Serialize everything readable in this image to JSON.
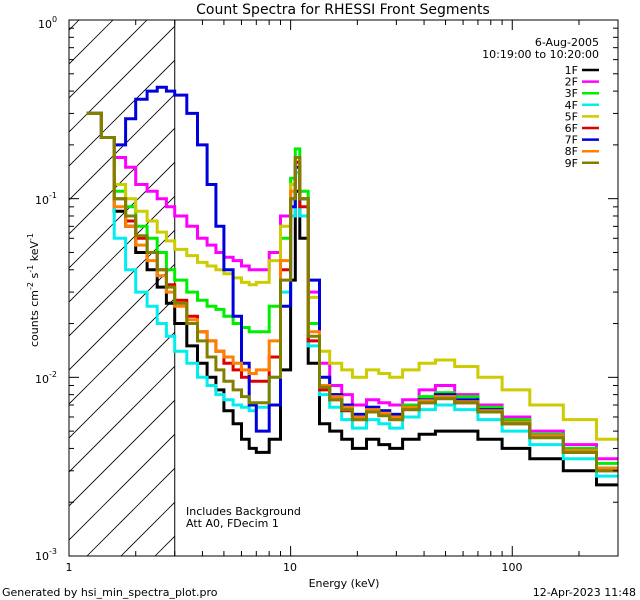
{
  "chart_data": {
    "type": "line",
    "title": "Count Spectra for RHESSI Front Segments",
    "xlabel": "Energy (keV)",
    "ylabel": "counts cm",
    "ylabel_sup1": "-2",
    "ylabel_mid": " s",
    "ylabel_sup2": "-1",
    "ylabel_end": " keV",
    "ylabel_sup3": "-1",
    "x_scale": "log",
    "y_scale": "log",
    "xlim": [
      1,
      300
    ],
    "ylim": [
      0.001,
      1
    ],
    "x_ticks": [
      {
        "value": 1,
        "label": "1"
      },
      {
        "value": 10,
        "label": "10"
      },
      {
        "value": 100,
        "label": "100"
      }
    ],
    "y_ticks": [
      {
        "value": 1,
        "base": "10",
        "exp": "0"
      },
      {
        "value": 0.1,
        "base": "10",
        "exp": "-1"
      },
      {
        "value": 0.01,
        "base": "10",
        "exp": "-2"
      },
      {
        "value": 0.001,
        "base": "10",
        "exp": "-3"
      }
    ],
    "date": "6-Aug-2005",
    "time_range": "10:19:00 to 10:20:00",
    "annotation_line1": "Includes Background",
    "annotation_line2": "Att A0, FDecim 1",
    "attenuated_region_max_kev": 3,
    "series": [
      {
        "name": "1F",
        "color": "#000000",
        "y": [
          0.3,
          0.22,
          0.085,
          0.07,
          0.05,
          0.04,
          0.032,
          0.026,
          0.02,
          0.015,
          0.012,
          0.01,
          0.0085,
          0.0065,
          0.0055,
          0.0045,
          0.004,
          0.0038,
          0.0045,
          0.011,
          0.035,
          0.11,
          0.06,
          0.012,
          0.0055,
          0.005,
          0.0045,
          0.004,
          0.0045,
          0.0042,
          0.004,
          0.0045,
          0.0048,
          0.005,
          0.005,
          0.0045,
          0.004,
          0.0035,
          0.003,
          0.0025
        ]
      },
      {
        "name": "2F",
        "color": "#ff00ff",
        "y": [
          0.3,
          0.22,
          0.17,
          0.15,
          0.12,
          0.11,
          0.1,
          0.09,
          0.08,
          0.07,
          0.06,
          0.055,
          0.05,
          0.047,
          0.045,
          0.042,
          0.04,
          0.04,
          0.05,
          0.08,
          0.12,
          0.16,
          0.1,
          0.03,
          0.012,
          0.009,
          0.008,
          0.007,
          0.0075,
          0.0072,
          0.007,
          0.0075,
          0.0085,
          0.009,
          0.008,
          0.007,
          0.006,
          0.005,
          0.0042,
          0.0035
        ]
      },
      {
        "name": "3F",
        "color": "#00ee00",
        "y": [
          0.3,
          0.22,
          0.11,
          0.09,
          0.07,
          0.06,
          0.05,
          0.04,
          0.035,
          0.03,
          0.027,
          0.025,
          0.024,
          0.022,
          0.02,
          0.019,
          0.018,
          0.018,
          0.025,
          0.06,
          0.13,
          0.19,
          0.11,
          0.02,
          0.009,
          0.008,
          0.007,
          0.0062,
          0.0068,
          0.0065,
          0.0062,
          0.007,
          0.0078,
          0.0082,
          0.0078,
          0.0068,
          0.0058,
          0.0048,
          0.004,
          0.0033
        ]
      },
      {
        "name": "4F",
        "color": "#00eeee",
        "y": [
          0.3,
          0.22,
          0.06,
          0.04,
          0.03,
          0.025,
          0.02,
          0.017,
          0.014,
          0.012,
          0.01,
          0.009,
          0.008,
          0.0075,
          0.007,
          0.0068,
          0.0065,
          0.0068,
          0.01,
          0.03,
          0.08,
          0.14,
          0.08,
          0.015,
          0.008,
          0.0068,
          0.0058,
          0.0052,
          0.0058,
          0.0055,
          0.0052,
          0.006,
          0.0066,
          0.007,
          0.0066,
          0.0058,
          0.005,
          0.0042,
          0.0035,
          0.0028
        ]
      },
      {
        "name": "5F",
        "color": "#cccc00",
        "y": [
          0.3,
          0.22,
          0.12,
          0.1,
          0.085,
          0.075,
          0.065,
          0.058,
          0.052,
          0.048,
          0.044,
          0.042,
          0.04,
          0.038,
          0.036,
          0.034,
          0.033,
          0.034,
          0.045,
          0.07,
          0.12,
          0.16,
          0.1,
          0.028,
          0.014,
          0.012,
          0.011,
          0.01,
          0.011,
          0.0105,
          0.01,
          0.011,
          0.012,
          0.0125,
          0.0115,
          0.01,
          0.0085,
          0.007,
          0.0058,
          0.0045
        ]
      },
      {
        "name": "6F",
        "color": "#dd0000",
        "y": [
          0.3,
          0.22,
          0.1,
          0.075,
          0.06,
          0.05,
          0.04,
          0.033,
          0.027,
          0.022,
          0.018,
          0.016,
          0.014,
          0.012,
          0.011,
          0.01,
          0.0095,
          0.0095,
          0.013,
          0.04,
          0.1,
          0.16,
          0.09,
          0.016,
          0.0085,
          0.0075,
          0.0065,
          0.0058,
          0.0065,
          0.0062,
          0.0058,
          0.0066,
          0.0072,
          0.0076,
          0.0072,
          0.0064,
          0.0055,
          0.0046,
          0.0038,
          0.003
        ]
      },
      {
        "name": "7F",
        "color": "#0000dd",
        "y": [
          0.3,
          0.22,
          0.2,
          0.28,
          0.36,
          0.4,
          0.42,
          0.4,
          0.38,
          0.3,
          0.2,
          0.12,
          0.07,
          0.04,
          0.022,
          0.012,
          0.007,
          0.005,
          0.007,
          0.025,
          0.09,
          0.15,
          0.1,
          0.035,
          0.01,
          0.008,
          0.007,
          0.0062,
          0.0068,
          0.0065,
          0.0062,
          0.0068,
          0.0075,
          0.008,
          0.0075,
          0.0066,
          0.0056,
          0.0047,
          0.0039,
          0.0031
        ]
      },
      {
        "name": "8F",
        "color": "#ff8000",
        "y": [
          0.3,
          0.22,
          0.09,
          0.07,
          0.055,
          0.045,
          0.037,
          0.03,
          0.025,
          0.021,
          0.018,
          0.016,
          0.014,
          0.013,
          0.012,
          0.011,
          0.0105,
          0.011,
          0.016,
          0.045,
          0.11,
          0.17,
          0.1,
          0.018,
          0.009,
          0.0078,
          0.0068,
          0.006,
          0.0066,
          0.0063,
          0.006,
          0.0068,
          0.0074,
          0.0078,
          0.0073,
          0.0065,
          0.0056,
          0.0047,
          0.0039,
          0.0031
        ]
      },
      {
        "name": "9F",
        "color": "#808000",
        "y": [
          0.3,
          0.22,
          0.1,
          0.08,
          0.062,
          0.05,
          0.04,
          0.032,
          0.026,
          0.02,
          0.016,
          0.013,
          0.011,
          0.0095,
          0.0085,
          0.0078,
          0.0072,
          0.0072,
          0.01,
          0.035,
          0.1,
          0.17,
          0.1,
          0.017,
          0.0088,
          0.0075,
          0.0066,
          0.0058,
          0.0064,
          0.0061,
          0.0058,
          0.0066,
          0.0072,
          0.0076,
          0.0072,
          0.0064,
          0.0055,
          0.0046,
          0.0038,
          0.003
        ]
      }
    ],
    "x_bins": [
      1.2,
      1.4,
      1.6,
      1.8,
      2.0,
      2.25,
      2.5,
      2.75,
      3.0,
      3.4,
      3.8,
      4.2,
      4.6,
      5.0,
      5.5,
      6.0,
      6.5,
      7.0,
      8.0,
      9.0,
      10.0,
      10.5,
      11.0,
      12.0,
      13.5,
      15,
      17,
      19,
      22,
      25,
      28,
      32,
      38,
      45,
      55,
      70,
      90,
      120,
      170,
      240,
      300
    ]
  },
  "footer": {
    "left": "Generated by hsi_min_spectra_plot.pro",
    "right": "12-Apr-2023 11:48"
  }
}
